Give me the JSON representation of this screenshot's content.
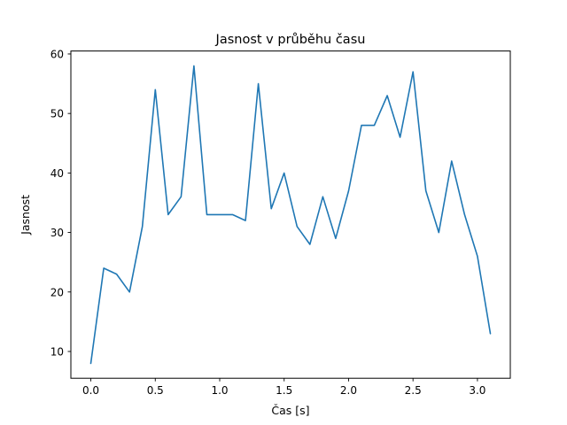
{
  "chart_data": {
    "type": "line",
    "title": "Jasnost v průběhu času",
    "xlabel": "Čas [s]",
    "ylabel": "Jasnost",
    "x": [
      0.0,
      0.1,
      0.2,
      0.3,
      0.4,
      0.5,
      0.6,
      0.7,
      0.8,
      0.9,
      1.0,
      1.1,
      1.2,
      1.3,
      1.4,
      1.5,
      1.6,
      1.7,
      1.8,
      1.9,
      2.0,
      2.1,
      2.2,
      2.3,
      2.4,
      2.5,
      2.6,
      2.7,
      2.8,
      2.9,
      3.0,
      3.1
    ],
    "y": [
      8,
      24,
      23,
      20,
      31,
      54,
      33,
      36,
      58,
      33,
      33,
      33,
      32,
      55,
      34,
      40,
      31,
      28,
      36,
      29,
      37,
      48,
      48,
      53,
      46,
      57,
      37,
      30,
      42,
      33,
      26,
      13
    ],
    "xlim": [
      -0.155,
      3.255
    ],
    "ylim": [
      5.5,
      60.5
    ],
    "xticks": [
      0.0,
      0.5,
      1.0,
      1.5,
      2.0,
      2.5,
      3.0
    ],
    "xtick_labels": [
      "0.0",
      "0.5",
      "1.0",
      "1.5",
      "2.0",
      "2.5",
      "3.0"
    ],
    "yticks": [
      10,
      20,
      30,
      40,
      50,
      60
    ],
    "ytick_labels": [
      "10",
      "20",
      "30",
      "40",
      "50",
      "60"
    ],
    "line_color": "#1f77b4",
    "background_color": "#ffffff",
    "grid": false,
    "legend_position": "none"
  }
}
